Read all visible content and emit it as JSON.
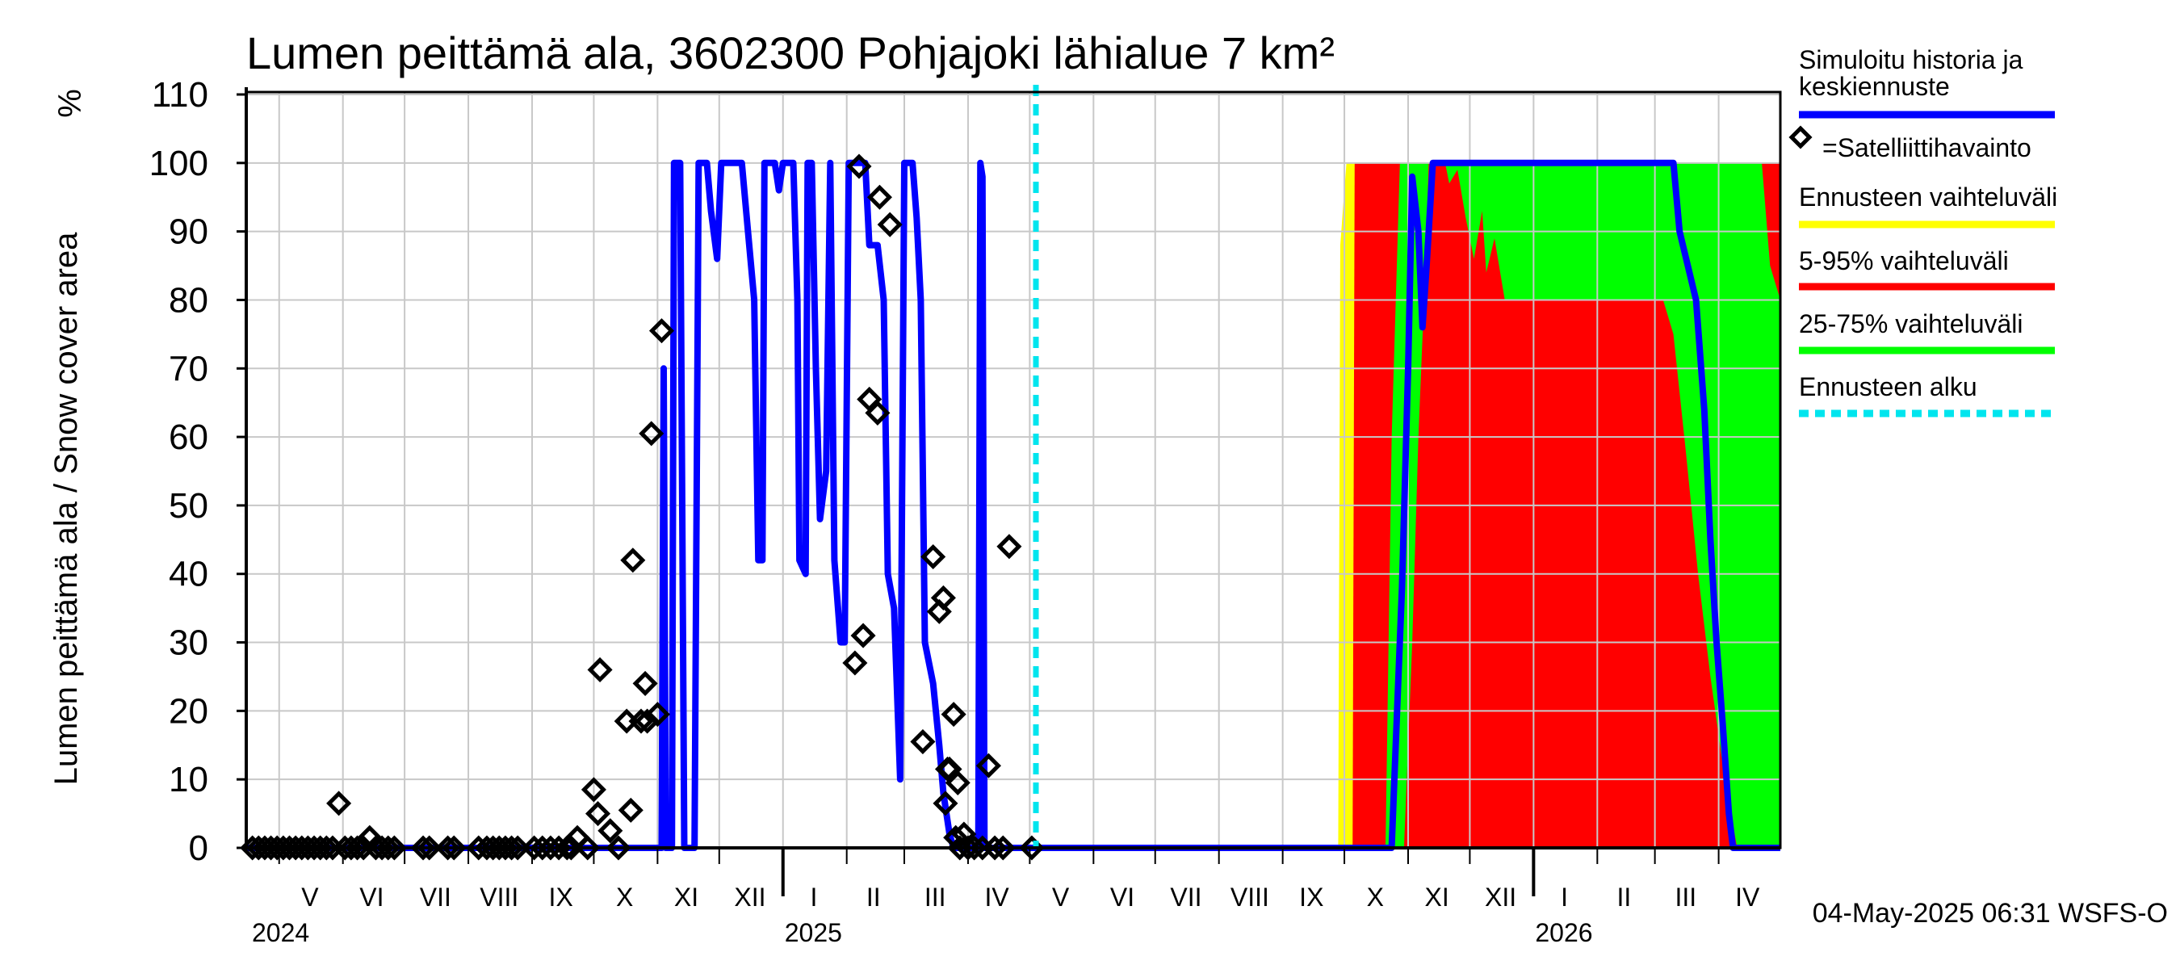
{
  "chart_data": {
    "type": "area",
    "title": "Lumen peittämä ala, 3602300 Pohjajoki lähialue 7 km²",
    "ylabel": "Lumen peittämä ala / Snow cover area",
    "yunit": "%",
    "ylim": [
      0,
      110
    ],
    "yticks": [
      0,
      10,
      20,
      30,
      40,
      50,
      60,
      70,
      80,
      90,
      100,
      110
    ],
    "xlim": [
      "2024-04-15",
      "2026-05-01"
    ],
    "month_labels": [
      {
        "date": "2024-05-16",
        "label": "V"
      },
      {
        "date": "2024-06-15",
        "label": "VI"
      },
      {
        "date": "2024-07-16",
        "label": "VII"
      },
      {
        "date": "2024-08-16",
        "label": "VIII"
      },
      {
        "date": "2024-09-15",
        "label": "IX"
      },
      {
        "date": "2024-10-16",
        "label": "X"
      },
      {
        "date": "2024-11-15",
        "label": "XI"
      },
      {
        "date": "2024-12-16",
        "label": "XII"
      },
      {
        "date": "2025-01-16",
        "label": "I"
      },
      {
        "date": "2025-02-14",
        "label": "II"
      },
      {
        "date": "2025-03-16",
        "label": "III"
      },
      {
        "date": "2025-04-15",
        "label": "IV"
      },
      {
        "date": "2025-05-16",
        "label": "V"
      },
      {
        "date": "2025-06-15",
        "label": "VI"
      },
      {
        "date": "2025-07-16",
        "label": "VII"
      },
      {
        "date": "2025-08-16",
        "label": "VIII"
      },
      {
        "date": "2025-09-15",
        "label": "IX"
      },
      {
        "date": "2025-10-16",
        "label": "X"
      },
      {
        "date": "2025-11-15",
        "label": "XI"
      },
      {
        "date": "2025-12-16",
        "label": "XII"
      },
      {
        "date": "2026-01-16",
        "label": "I"
      },
      {
        "date": "2026-02-14",
        "label": "II"
      },
      {
        "date": "2026-03-16",
        "label": "III"
      },
      {
        "date": "2026-04-15",
        "label": "IV"
      }
    ],
    "year_labels": [
      {
        "date": "2024-05-01",
        "label": "2024"
      },
      {
        "date": "2025-01-01",
        "label": "2025"
      },
      {
        "date": "2026-01-01",
        "label": "2026"
      }
    ],
    "forecast_start": "2025-05-04",
    "series": [
      {
        "name": "Simuloitu historia ja keskiennuste",
        "color": "#0000ff",
        "points": [
          [
            "2024-04-15",
            0
          ],
          [
            "2024-11-03",
            0
          ],
          [
            "2024-11-04",
            70
          ],
          [
            "2024-11-05",
            0
          ],
          [
            "2024-11-08",
            0
          ],
          [
            "2024-11-09",
            100
          ],
          [
            "2024-11-12",
            100
          ],
          [
            "2024-11-14",
            0
          ],
          [
            "2024-11-19",
            0
          ],
          [
            "2024-11-21",
            100
          ],
          [
            "2024-11-25",
            100
          ],
          [
            "2024-11-27",
            93
          ],
          [
            "2024-11-30",
            86
          ],
          [
            "2024-12-02",
            100
          ],
          [
            "2024-12-12",
            100
          ],
          [
            "2024-12-15",
            90
          ],
          [
            "2024-12-18",
            80
          ],
          [
            "2024-12-20",
            42
          ],
          [
            "2024-12-22",
            42
          ],
          [
            "2024-12-23",
            100
          ],
          [
            "2024-12-28",
            100
          ],
          [
            "2024-12-30",
            96
          ],
          [
            "2025-01-01",
            100
          ],
          [
            "2025-01-06",
            100
          ],
          [
            "2025-01-08",
            80
          ],
          [
            "2025-01-09",
            42
          ],
          [
            "2025-01-12",
            40
          ],
          [
            "2025-01-13",
            100
          ],
          [
            "2025-01-15",
            100
          ],
          [
            "2025-01-17",
            70
          ],
          [
            "2025-01-19",
            48
          ],
          [
            "2025-01-22",
            55
          ],
          [
            "2025-01-24",
            100
          ],
          [
            "2025-01-26",
            42
          ],
          [
            "2025-01-29",
            30
          ],
          [
            "2025-01-31",
            30
          ],
          [
            "2025-02-02",
            100
          ],
          [
            "2025-02-10",
            100
          ],
          [
            "2025-02-12",
            88
          ],
          [
            "2025-02-16",
            88
          ],
          [
            "2025-02-19",
            80
          ],
          [
            "2025-02-21",
            40
          ],
          [
            "2025-02-24",
            35
          ],
          [
            "2025-02-27",
            10
          ],
          [
            "2025-03-01",
            100
          ],
          [
            "2025-03-05",
            100
          ],
          [
            "2025-03-07",
            92
          ],
          [
            "2025-03-09",
            80
          ],
          [
            "2025-03-11",
            30
          ],
          [
            "2025-03-15",
            24
          ],
          [
            "2025-03-18",
            15
          ],
          [
            "2025-03-20",
            8
          ],
          [
            "2025-03-23",
            2
          ],
          [
            "2025-03-25",
            0
          ],
          [
            "2025-04-06",
            0
          ],
          [
            "2025-04-07",
            100
          ],
          [
            "2025-04-08",
            98
          ],
          [
            "2025-04-09",
            0
          ],
          [
            "2025-10-24",
            0
          ],
          [
            "2025-10-29",
            38
          ],
          [
            "2025-11-01",
            70
          ],
          [
            "2025-11-03",
            98
          ],
          [
            "2025-11-06",
            90
          ],
          [
            "2025-11-08",
            76
          ],
          [
            "2025-11-10",
            85
          ],
          [
            "2025-11-13",
            100
          ],
          [
            "2025-11-20",
            100
          ],
          [
            "2026-03-10",
            100
          ],
          [
            "2026-03-13",
            90
          ],
          [
            "2026-03-17",
            85
          ],
          [
            "2026-03-21",
            80
          ],
          [
            "2026-03-25",
            64
          ],
          [
            "2026-03-28",
            45
          ],
          [
            "2026-03-31",
            30
          ],
          [
            "2026-04-03",
            18
          ],
          [
            "2026-04-06",
            5
          ],
          [
            "2026-04-08",
            0
          ],
          [
            "2026-05-01",
            0
          ]
        ]
      },
      {
        "name": "Ennusteen vaihteluväli",
        "color": "#ffff00",
        "band": true,
        "upper": [
          [
            "2025-09-28",
            0
          ],
          [
            "2025-09-29",
            88
          ],
          [
            "2025-10-02",
            100
          ],
          [
            "2026-05-01",
            100
          ]
        ],
        "lower": [
          [
            "2025-09-28",
            0
          ],
          [
            "2026-05-01",
            0
          ]
        ]
      },
      {
        "name": "5-95% vaihteluväli",
        "color": "#ff0000",
        "band": true,
        "upper": [
          [
            "2025-10-05",
            0
          ],
          [
            "2025-10-06",
            100
          ],
          [
            "2026-04-30",
            100
          ],
          [
            "2026-05-01",
            100
          ]
        ],
        "lower": [
          [
            "2025-10-05",
            0
          ],
          [
            "2026-05-01",
            0
          ]
        ]
      },
      {
        "name": "25-75% vaihteluväli",
        "color": "#00ff00",
        "band": true,
        "upper": [
          [
            "2025-10-21",
            0
          ],
          [
            "2025-10-24",
            60
          ],
          [
            "2025-10-28",
            100
          ],
          [
            "2026-04-22",
            100
          ],
          [
            "2026-04-26",
            85
          ],
          [
            "2026-05-01",
            80
          ]
        ],
        "lower": [
          [
            "2025-10-21",
            0
          ],
          [
            "2025-10-30",
            0
          ],
          [
            "2025-11-03",
            30
          ],
          [
            "2025-11-06",
            60
          ],
          [
            "2025-11-09",
            82
          ],
          [
            "2025-11-11",
            100
          ],
          [
            "2025-11-19",
            100
          ],
          [
            "2025-11-21",
            97
          ],
          [
            "2025-11-25",
            99
          ],
          [
            "2025-11-29",
            92
          ],
          [
            "2025-12-03",
            86
          ],
          [
            "2025-12-07",
            93
          ],
          [
            "2025-12-09",
            84
          ],
          [
            "2025-12-13",
            89
          ],
          [
            "2025-12-18",
            80
          ],
          [
            "2026-03-05",
            80
          ],
          [
            "2026-03-10",
            75
          ],
          [
            "2026-03-16",
            58
          ],
          [
            "2026-03-22",
            40
          ],
          [
            "2026-03-28",
            25
          ],
          [
            "2026-04-04",
            10
          ],
          [
            "2026-04-10",
            0
          ],
          [
            "2026-05-01",
            0
          ]
        ]
      }
    ],
    "satellite_observations": {
      "name": "=Satelliittihavainto",
      "points": [
        [
          "2024-04-18",
          0
        ],
        [
          "2024-04-21",
          0
        ],
        [
          "2024-04-24",
          0
        ],
        [
          "2024-04-27",
          0
        ],
        [
          "2024-04-30",
          0
        ],
        [
          "2024-05-03",
          0
        ],
        [
          "2024-05-06",
          0
        ],
        [
          "2024-05-09",
          0
        ],
        [
          "2024-05-12",
          0
        ],
        [
          "2024-05-15",
          0
        ],
        [
          "2024-05-18",
          0
        ],
        [
          "2024-05-21",
          0
        ],
        [
          "2024-05-24",
          0
        ],
        [
          "2024-05-27",
          0
        ],
        [
          "2024-05-30",
          6.5
        ],
        [
          "2024-06-02",
          0
        ],
        [
          "2024-06-05",
          0
        ],
        [
          "2024-06-08",
          0
        ],
        [
          "2024-06-11",
          0
        ],
        [
          "2024-06-14",
          1.5
        ],
        [
          "2024-06-17",
          0
        ],
        [
          "2024-06-20",
          0
        ],
        [
          "2024-06-23",
          0
        ],
        [
          "2024-06-26",
          0
        ],
        [
          "2024-07-10",
          0
        ],
        [
          "2024-07-13",
          0
        ],
        [
          "2024-07-22",
          0
        ],
        [
          "2024-07-25",
          0
        ],
        [
          "2024-08-06",
          0
        ],
        [
          "2024-08-10",
          0
        ],
        [
          "2024-08-13",
          0
        ],
        [
          "2024-08-16",
          0
        ],
        [
          "2024-08-19",
          0
        ],
        [
          "2024-08-22",
          0
        ],
        [
          "2024-08-25",
          0
        ],
        [
          "2024-09-02",
          0
        ],
        [
          "2024-09-06",
          0
        ],
        [
          "2024-09-10",
          0
        ],
        [
          "2024-09-14",
          0
        ],
        [
          "2024-09-18",
          0
        ],
        [
          "2024-09-20",
          0
        ],
        [
          "2024-09-23",
          1.5
        ],
        [
          "2024-09-28",
          0
        ],
        [
          "2024-10-01",
          8.5
        ],
        [
          "2024-10-03",
          5
        ],
        [
          "2024-10-04",
          26
        ],
        [
          "2024-10-09",
          2.5
        ],
        [
          "2024-10-13",
          0
        ],
        [
          "2024-10-17",
          18.5
        ],
        [
          "2024-10-19",
          5.5
        ],
        [
          "2024-10-20",
          42
        ],
        [
          "2024-10-24",
          18.5
        ],
        [
          "2024-10-26",
          24
        ],
        [
          "2024-10-27",
          18.5
        ],
        [
          "2024-10-29",
          60.5
        ],
        [
          "2024-11-01",
          19.5
        ],
        [
          "2024-11-03",
          75.5
        ],
        [
          "2025-02-05",
          27
        ],
        [
          "2025-02-07",
          99.5
        ],
        [
          "2025-02-09",
          31
        ],
        [
          "2025-02-12",
          65.5
        ],
        [
          "2025-02-16",
          63.5
        ],
        [
          "2025-02-17",
          95
        ],
        [
          "2025-02-22",
          91
        ],
        [
          "2025-03-10",
          15.5
        ],
        [
          "2025-03-15",
          42.5
        ],
        [
          "2025-03-18",
          34.5
        ],
        [
          "2025-03-20",
          36.5
        ],
        [
          "2025-03-21",
          6.5
        ],
        [
          "2025-03-22",
          11.5
        ],
        [
          "2025-03-23",
          11.5
        ],
        [
          "2025-03-25",
          19.5
        ],
        [
          "2025-03-26",
          1.5
        ],
        [
          "2025-03-27",
          9.5
        ],
        [
          "2025-03-28",
          0
        ],
        [
          "2025-03-30",
          2
        ],
        [
          "2025-04-01",
          0
        ],
        [
          "2025-04-04",
          0
        ],
        [
          "2025-04-08",
          0
        ],
        [
          "2025-04-11",
          12
        ],
        [
          "2025-04-14",
          0
        ],
        [
          "2025-04-18",
          0
        ],
        [
          "2025-04-21",
          44
        ],
        [
          "2025-05-02",
          0
        ]
      ]
    }
  },
  "legend": {
    "items": [
      {
        "label": "Simuloitu historia ja keskiennuste",
        "lines": [
          "Simuloitu historia ja",
          "keskiennuste"
        ],
        "color": "#0000ff",
        "style": "line"
      },
      {
        "label": "=Satelliittihavainto",
        "lines": [
          "=Satelliittihavainto"
        ],
        "color": "#000000",
        "style": "diamond"
      },
      {
        "label": "Ennusteen vaihteluväli",
        "lines": [
          "Ennusteen vaihteluväli"
        ],
        "color": "#ffff00",
        "style": "line"
      },
      {
        "label": "5-95% vaihteluväli",
        "lines": [
          "5-95% vaihteluväli"
        ],
        "color": "#ff0000",
        "style": "line"
      },
      {
        "label": "25-75% vaihteluväli",
        "lines": [
          "25-75% vaihteluväli"
        ],
        "color": "#00ff00",
        "style": "line"
      },
      {
        "label": "Ennusteen alku",
        "lines": [
          "Ennusteen alku"
        ],
        "color": "#00e5ee",
        "style": "dashed"
      }
    ]
  },
  "footer": {
    "timestamp": "04-May-2025 06:31 WSFS-O"
  }
}
